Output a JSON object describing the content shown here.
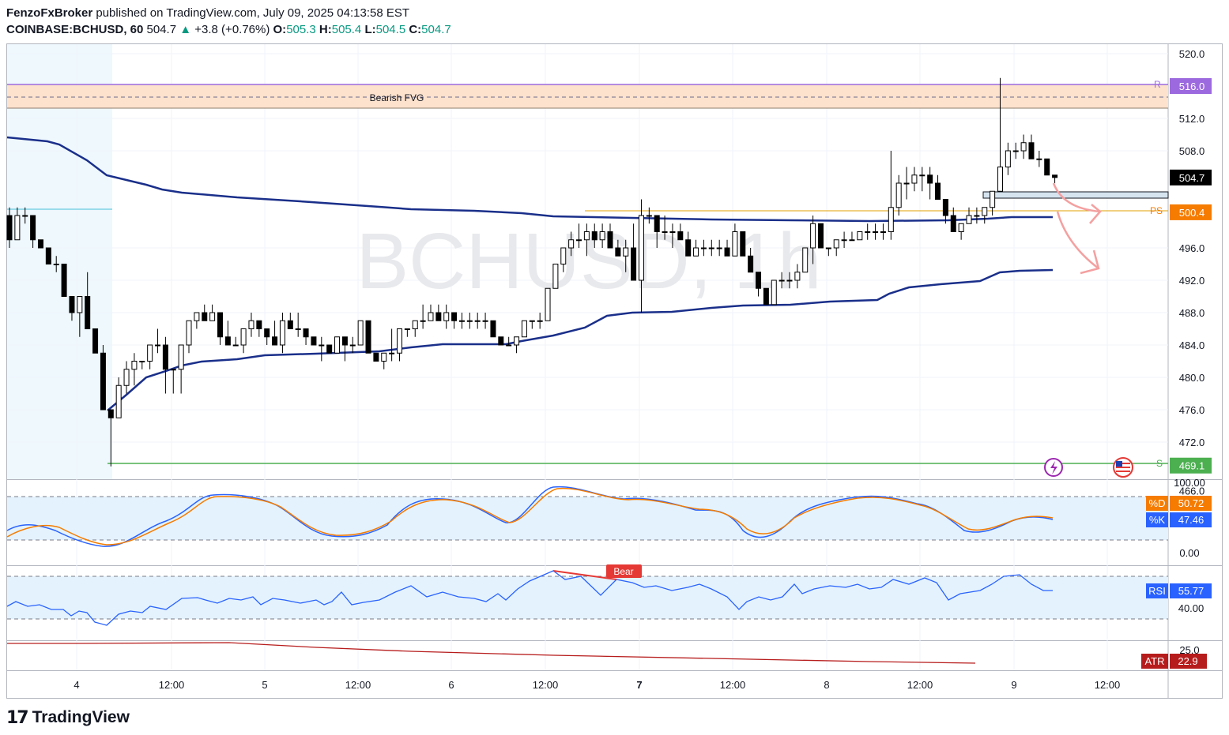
{
  "publish": {
    "author": "FenzoFxBroker",
    "text": "published on TradingView.com, July 09, 2025 04:13:58 EST"
  },
  "symbol": {
    "name": "COINBASE:BCHUSD, 60",
    "price": "504.7",
    "change": "+3.8 (+0.76%)",
    "o_label": "O:",
    "o": "505.3",
    "h_label": "H:",
    "h": "505.4",
    "l_label": "L:",
    "l": "504.5",
    "c_label": "C:",
    "c": "504.7"
  },
  "watermark": "BCHUSD, 1h",
  "brand": "TradingView",
  "colors": {
    "up": "#089981",
    "down": "#000000",
    "vwap": "#1a2f8a",
    "fvg": "#fbd9c0",
    "fvg_border": "#8b6fd1",
    "stoch_k": "#2962ff",
    "stoch_d": "#f57c00",
    "rsi": "#2962ff",
    "atr": "#b71c1c",
    "support": "#4caf50",
    "ps": "#e0a000",
    "arrow": "#f4a0a0"
  },
  "annotations": {
    "fvg_label": "Bearish FVG",
    "r_tag": "R",
    "ps_tag": "PS",
    "s_tag": "S",
    "bear_label": "Bear"
  },
  "price_axis": {
    "ticks": [
      "520.0",
      "516.0",
      "512.0",
      "508.0",
      "504.7",
      "500.4",
      "496.0",
      "492.0",
      "488.0",
      "484.0",
      "480.0",
      "476.0",
      "472.0",
      "469.1",
      "466.0"
    ],
    "badges": [
      {
        "value": "516.0",
        "color": "#9c6ade"
      },
      {
        "value": "504.7",
        "color": "#000000"
      },
      {
        "value": "500.4",
        "color": "#f57c00"
      },
      {
        "value": "469.1",
        "color": "#4caf50"
      }
    ]
  },
  "time_axis": [
    "4",
    "12:00",
    "5",
    "12:00",
    "6",
    "12:00",
    "7",
    "12:00",
    "8",
    "12:00",
    "9",
    "12:00"
  ],
  "stoch": {
    "ticks": [
      "100.00",
      "0.00"
    ],
    "d_label": "%D",
    "d_value": "50.72",
    "k_label": "%K",
    "k_value": "47.46"
  },
  "rsi": {
    "ticks": [
      "40.00"
    ],
    "label": "RSI",
    "value": "55.77"
  },
  "atr": {
    "ticks": [
      "25.0"
    ],
    "label": "ATR",
    "value": "22.9"
  },
  "chart_data": {
    "type": "candlestick",
    "timeframe": "1h",
    "price_range": [
      466,
      521
    ],
    "key_levels": {
      "resistance_R": 516.0,
      "fvg_top": 516.0,
      "fvg_bottom": 513.0,
      "previous_structure_PS": 500.4,
      "support_S": 469.1,
      "last_price": 504.7
    },
    "candles_ohlc": [
      [
        500,
        501,
        496,
        497
      ],
      [
        497,
        501,
        497,
        500
      ],
      [
        500,
        501,
        499,
        500
      ],
      [
        500,
        500,
        496,
        497
      ],
      [
        497,
        497,
        496,
        496
      ],
      [
        496,
        496,
        494,
        494
      ],
      [
        494,
        495,
        493,
        494
      ],
      [
        494,
        494,
        490,
        490
      ],
      [
        490,
        490,
        487,
        488
      ],
      [
        488,
        490,
        485,
        490
      ],
      [
        490,
        493,
        486,
        486
      ],
      [
        486,
        486,
        484,
        483
      ],
      [
        483,
        484,
        476,
        476
      ],
      [
        476,
        476,
        469,
        475
      ],
      [
        475,
        480,
        475,
        479
      ],
      [
        479,
        482,
        478,
        481
      ],
      [
        481,
        483,
        479,
        482
      ],
      [
        482,
        482,
        481,
        482
      ],
      [
        482,
        484,
        481,
        484
      ],
      [
        484,
        486,
        483,
        484
      ],
      [
        484,
        485,
        478,
        481
      ],
      [
        481,
        481,
        478,
        481
      ],
      [
        481,
        484,
        478,
        484
      ],
      [
        484,
        487,
        483,
        487
      ],
      [
        487,
        488,
        486,
        488
      ],
      [
        488,
        489,
        487,
        487
      ],
      [
        487,
        489,
        487,
        488
      ],
      [
        488,
        488,
        484,
        485
      ],
      [
        485,
        487,
        484,
        484
      ],
      [
        484,
        485,
        484,
        484
      ],
      [
        484,
        486,
        483,
        486
      ],
      [
        486,
        488,
        485,
        487
      ],
      [
        487,
        487,
        485,
        486
      ],
      [
        486,
        486,
        484,
        485
      ],
      [
        485,
        487,
        484,
        484
      ],
      [
        484,
        488,
        483,
        487
      ],
      [
        487,
        488,
        486,
        486
      ],
      [
        486,
        488,
        485,
        486
      ],
      [
        486,
        486,
        484,
        485
      ],
      [
        485,
        485,
        484,
        484
      ],
      [
        484,
        485,
        482,
        484
      ],
      [
        484,
        484,
        483,
        483
      ],
      [
        483,
        485,
        483,
        485
      ],
      [
        485,
        485,
        482,
        484
      ],
      [
        484,
        485,
        483,
        484
      ],
      [
        484,
        487,
        484,
        487
      ],
      [
        487,
        487,
        483,
        483
      ],
      [
        483,
        483,
        482,
        482
      ],
      [
        482,
        483,
        481,
        483
      ],
      [
        483,
        486,
        482,
        483
      ],
      [
        483,
        486,
        482,
        486
      ],
      [
        486,
        486,
        485,
        486
      ],
      [
        486,
        487,
        485,
        487
      ],
      [
        487,
        489,
        486,
        487
      ],
      [
        487,
        489,
        487,
        488
      ],
      [
        488,
        489,
        487,
        487
      ],
      [
        487,
        489,
        486,
        488
      ],
      [
        488,
        488,
        486,
        487
      ],
      [
        487,
        488,
        486,
        487
      ],
      [
        487,
        488,
        486,
        487
      ],
      [
        487,
        488,
        486,
        487
      ],
      [
        487,
        488,
        486,
        487
      ],
      [
        487,
        487,
        485,
        485
      ],
      [
        485,
        485,
        484,
        484
      ],
      [
        484,
        485,
        484,
        484
      ],
      [
        484,
        485,
        483,
        485
      ],
      [
        485,
        487,
        485,
        487
      ],
      [
        487,
        487,
        486,
        487
      ],
      [
        487,
        488,
        486,
        487
      ],
      [
        487,
        491,
        487,
        491
      ],
      [
        491,
        494,
        491,
        494
      ],
      [
        494,
        496,
        493,
        496
      ],
      [
        496,
        498,
        495,
        497
      ],
      [
        497,
        499,
        496,
        497
      ],
      [
        497,
        499,
        495,
        498
      ],
      [
        498,
        499,
        496,
        497
      ],
      [
        497,
        499,
        496,
        498
      ],
      [
        498,
        499,
        496,
        496
      ],
      [
        496,
        497,
        495,
        495
      ],
      [
        495,
        497,
        493,
        496
      ],
      [
        496,
        499,
        492,
        492
      ],
      [
        492,
        502,
        488,
        500
      ],
      [
        500,
        501,
        499,
        500
      ],
      [
        500,
        500,
        496,
        498
      ],
      [
        498,
        500,
        497,
        498
      ],
      [
        498,
        499,
        496,
        498
      ],
      [
        498,
        499,
        497,
        497
      ],
      [
        497,
        498,
        495,
        495
      ],
      [
        495,
        497,
        495,
        496
      ],
      [
        496,
        497,
        495,
        496
      ],
      [
        496,
        497,
        495,
        496
      ],
      [
        496,
        497,
        495,
        496
      ],
      [
        496,
        497,
        495,
        495
      ],
      [
        495,
        499,
        495,
        498
      ],
      [
        498,
        498,
        495,
        495
      ],
      [
        495,
        496,
        493,
        493
      ],
      [
        493,
        493,
        490,
        491
      ],
      [
        491,
        491,
        489,
        489
      ],
      [
        489,
        492,
        489,
        492
      ],
      [
        492,
        493,
        491,
        492
      ],
      [
        492,
        493,
        491,
        492
      ],
      [
        492,
        494,
        491,
        493
      ],
      [
        493,
        496,
        493,
        496
      ],
      [
        496,
        500,
        494,
        499
      ],
      [
        499,
        499,
        496,
        496
      ],
      [
        496,
        496,
        495,
        496
      ],
      [
        496,
        497,
        495,
        497
      ],
      [
        497,
        498,
        496,
        497
      ],
      [
        497,
        498,
        497,
        497
      ],
      [
        497,
        498,
        497,
        498
      ],
      [
        498,
        499,
        497,
        498
      ],
      [
        498,
        499,
        497,
        498
      ],
      [
        498,
        499,
        497,
        498
      ],
      [
        498,
        508,
        497,
        501
      ],
      [
        501,
        505,
        500,
        504
      ],
      [
        504,
        506,
        502,
        504
      ],
      [
        504,
        506,
        503,
        505
      ],
      [
        505,
        506,
        503,
        505
      ],
      [
        505,
        506,
        502,
        504
      ],
      [
        504,
        505,
        502,
        502
      ],
      [
        502,
        502,
        499,
        500
      ],
      [
        500,
        501,
        498,
        498
      ],
      [
        498,
        499,
        497,
        499
      ],
      [
        499,
        501,
        499,
        500
      ],
      [
        500,
        501,
        499,
        500
      ],
      [
        500,
        501,
        499,
        501
      ],
      [
        501,
        503,
        500,
        503
      ],
      [
        503,
        517,
        503,
        506
      ],
      [
        506,
        509,
        505,
        508
      ],
      [
        508,
        509,
        507,
        508
      ],
      [
        508,
        510,
        507,
        509
      ],
      [
        509,
        510,
        507,
        507
      ],
      [
        507,
        508,
        506,
        507
      ],
      [
        507,
        507,
        505,
        505
      ],
      [
        505,
        505,
        504,
        504.7
      ]
    ],
    "indicators": [
      "VWAP bands",
      "Stochastic (%K 47.46, %D 50.72)",
      "RSI 55.77",
      "ATR 22.9"
    ]
  }
}
